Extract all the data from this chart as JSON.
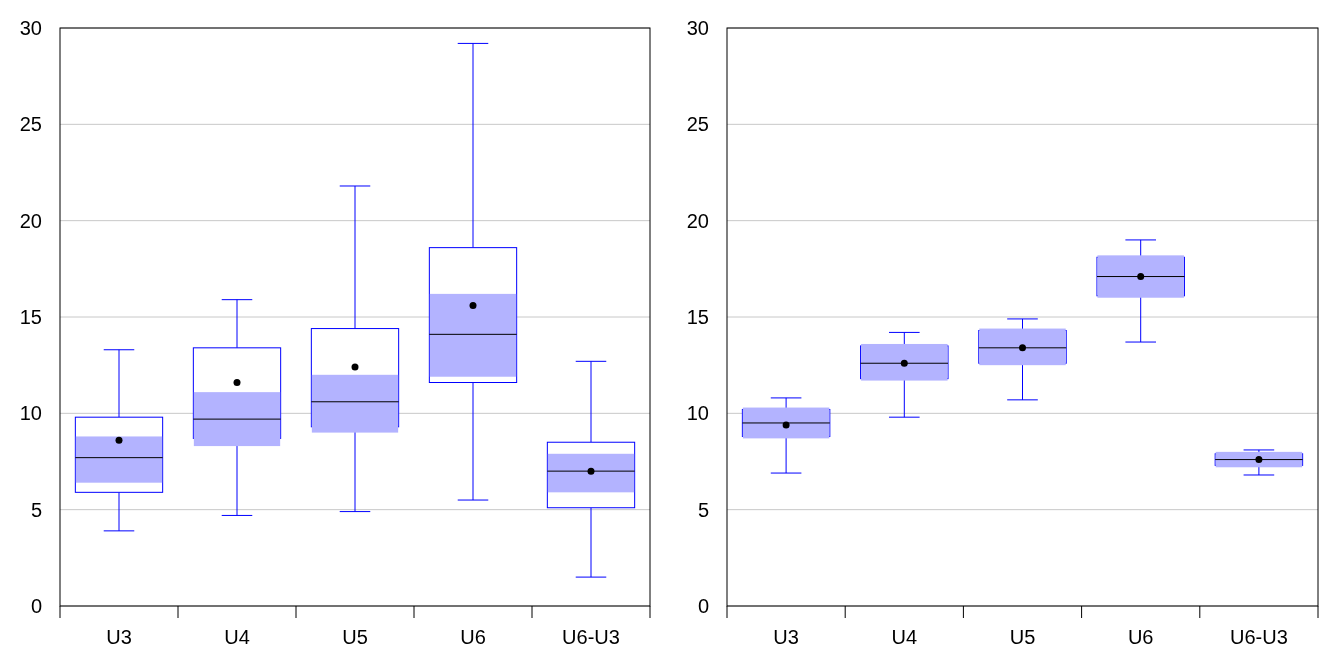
{
  "chart_data": [
    {
      "type": "box",
      "categories": [
        "U3",
        "U4",
        "U5",
        "U6",
        "U6-U3"
      ],
      "color": "#0000ff",
      "ylim": [
        0,
        30
      ],
      "yticks": [
        0,
        5,
        10,
        15,
        20,
        25,
        30
      ],
      "grid": "y",
      "boxes": [
        {
          "low": 3.9,
          "q1": 5.9,
          "median": 7.7,
          "q3": 9.8,
          "high": 13.3,
          "mean": 8.6
        },
        {
          "low": 4.7,
          "q1": 8.7,
          "median": 9.7,
          "q3": 13.4,
          "high": 15.9,
          "mean": 11.6
        },
        {
          "low": 4.9,
          "q1": 9.3,
          "median": 10.6,
          "q3": 14.4,
          "high": 21.8,
          "mean": 12.4
        },
        {
          "low": 5.5,
          "q1": 11.6,
          "median": 14.1,
          "q3": 18.6,
          "high": 29.2,
          "mean": 15.6
        },
        {
          "low": 1.5,
          "q1": 5.1,
          "median": 7.0,
          "q3": 8.5,
          "high": 12.7,
          "mean": 7.0
        }
      ],
      "series": [
        {
          "type": "bar",
          "color": "#b3b3ff",
          "base": [
            6.4,
            8.3,
            9.0,
            11.9,
            5.9
          ],
          "values": [
            2.4,
            2.8,
            3.0,
            4.3,
            2.0
          ]
        }
      ]
    },
    {
      "type": "box",
      "categories": [
        "U3",
        "U4",
        "U5",
        "U6",
        "U6-U3"
      ],
      "color": "#0000ff",
      "ylim": [
        0,
        30
      ],
      "yticks": [
        0,
        5,
        10,
        15,
        20,
        25,
        30
      ],
      "grid": "y",
      "boxes": [
        {
          "low": 6.9,
          "q1": 8.8,
          "median": 9.5,
          "q3": 10.2,
          "high": 10.8,
          "mean": 9.4
        },
        {
          "low": 9.8,
          "q1": 11.8,
          "median": 12.6,
          "q3": 13.5,
          "high": 14.2,
          "mean": 12.6
        },
        {
          "low": 10.7,
          "q1": 12.6,
          "median": 13.4,
          "q3": 14.3,
          "high": 14.9,
          "mean": 13.4
        },
        {
          "low": 13.7,
          "q1": 16.1,
          "median": 17.1,
          "q3": 18.1,
          "high": 19.0,
          "mean": 17.1
        },
        {
          "low": 6.8,
          "q1": 7.3,
          "median": 7.6,
          "q3": 7.9,
          "high": 8.1,
          "mean": 7.6
        }
      ],
      "series": [
        {
          "type": "bar",
          "color": "#b3b3ff",
          "base": [
            8.7,
            11.7,
            12.5,
            16.0,
            7.2
          ],
          "values": [
            1.6,
            1.9,
            1.9,
            2.2,
            0.8
          ]
        }
      ]
    }
  ]
}
